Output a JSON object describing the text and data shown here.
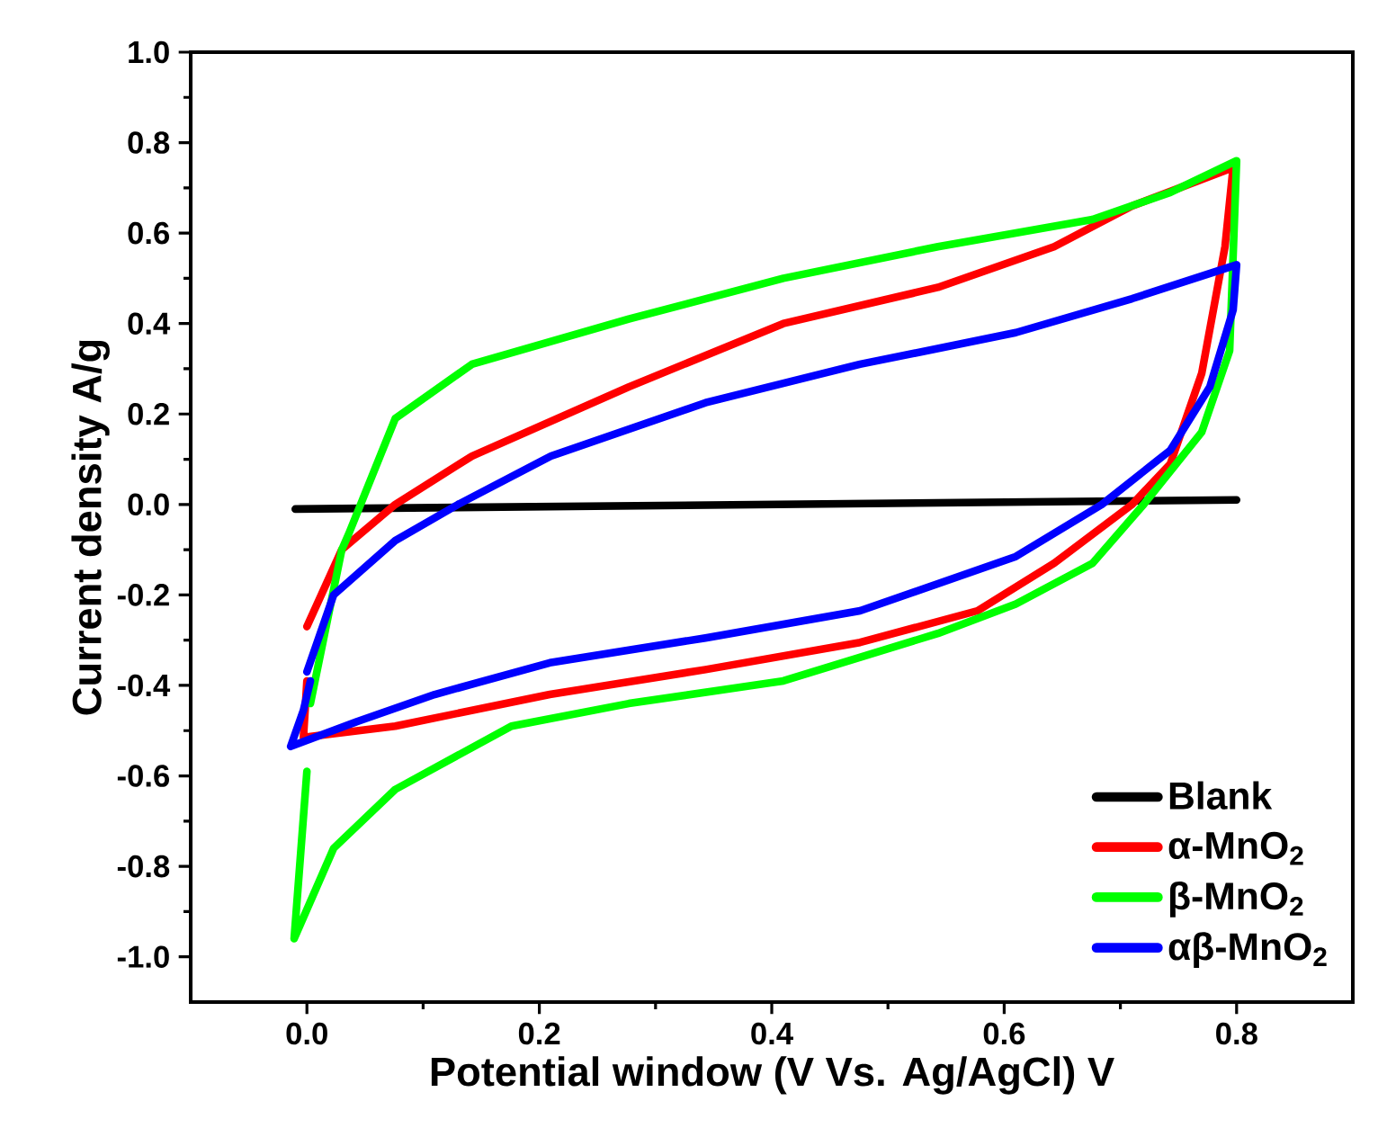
{
  "chart_data": {
    "type": "line",
    "xlabel": "Potential window (V Vs. Ag/AgCl) V",
    "ylabel": "Current density A/g",
    "xlim": [
      -0.1,
      0.9
    ],
    "ylim": [
      -1.1,
      1.0
    ],
    "xticks": [
      {
        "value": 0,
        "label": "0.0"
      },
      {
        "value": 0.2,
        "label": "0.2"
      },
      {
        "value": 0.4,
        "label": "0.4"
      },
      {
        "value": 0.6,
        "label": "0.6"
      },
      {
        "value": 0.8,
        "label": "0.8"
      }
    ],
    "yticks": [
      {
        "value": -1.0,
        "label": "-1.0"
      },
      {
        "value": -0.8,
        "label": "-0.8"
      },
      {
        "value": -0.6,
        "label": "-0.6"
      },
      {
        "value": -0.4,
        "label": "-0.4"
      },
      {
        "value": -0.2,
        "label": "-0.2"
      },
      {
        "value": 0,
        "label": "0.0"
      },
      {
        "value": 0.2,
        "label": "0.2"
      },
      {
        "value": 0.4,
        "label": "0.4"
      },
      {
        "value": 0.6,
        "label": "0.6"
      },
      {
        "value": 0.8,
        "label": "0.8"
      },
      {
        "value": 1.0,
        "label": "1.0"
      }
    ],
    "legend": "bottom right",
    "grid": false,
    "marker": "none",
    "line_style": "solid",
    "series": [
      {
        "name": "Blank",
        "color": "#000000",
        "x": [
          -0.01,
          0.8
        ],
        "values": [
          -0.01,
          0.01
        ]
      },
      {
        "name": "α-MnO$_{2}$",
        "color": "#ff0000",
        "x": [
          0.0,
          0.03,
          0.076,
          0.142,
          0.277,
          0.41,
          0.543,
          0.643,
          0.71,
          0.797,
          0.79,
          0.77,
          0.743,
          0.71,
          0.643,
          0.577,
          0.476,
          0.343,
          0.209,
          0.076,
          -0.003,
          0.0
        ],
        "values": [
          -0.27,
          -0.1,
          0.0,
          0.107,
          0.26,
          0.4,
          0.48,
          0.57,
          0.66,
          0.745,
          0.57,
          0.29,
          0.09,
          0.0,
          -0.13,
          -0.235,
          -0.305,
          -0.365,
          -0.42,
          -0.49,
          -0.515,
          -0.39
        ]
      },
      {
        "name": "β-MnO$_{2}$",
        "color": "#00ff00",
        "x": [
          0.003,
          0.03,
          0.036,
          0.076,
          0.142,
          0.277,
          0.41,
          0.543,
          0.676,
          0.743,
          0.8,
          0.794,
          0.77,
          0.72,
          0.676,
          0.61,
          0.543,
          0.41,
          0.277,
          0.176,
          0.076,
          0.023,
          -0.011,
          0.0
        ],
        "values": [
          -0.44,
          -0.1,
          -0.065,
          0.19,
          0.31,
          0.41,
          0.5,
          0.57,
          0.63,
          0.69,
          0.76,
          0.34,
          0.16,
          0.0,
          -0.13,
          -0.22,
          -0.285,
          -0.39,
          -0.44,
          -0.49,
          -0.63,
          -0.76,
          -0.96,
          -0.59
        ]
      },
      {
        "name": "αβ-MnO$_{2}$",
        "color": "#0000ff",
        "x": [
          0.0,
          0.023,
          0.076,
          0.13,
          0.21,
          0.343,
          0.476,
          0.61,
          0.71,
          0.8,
          0.797,
          0.777,
          0.743,
          0.684,
          0.61,
          0.476,
          0.343,
          0.209,
          0.11,
          0.043,
          -0.014,
          -0.003,
          0.003
        ],
        "values": [
          -0.37,
          -0.2,
          -0.08,
          0.0,
          0.107,
          0.225,
          0.31,
          0.38,
          0.455,
          0.53,
          0.43,
          0.26,
          0.12,
          0.0,
          -0.115,
          -0.235,
          -0.295,
          -0.35,
          -0.42,
          -0.48,
          -0.535,
          -0.455,
          -0.39
        ]
      }
    ]
  }
}
